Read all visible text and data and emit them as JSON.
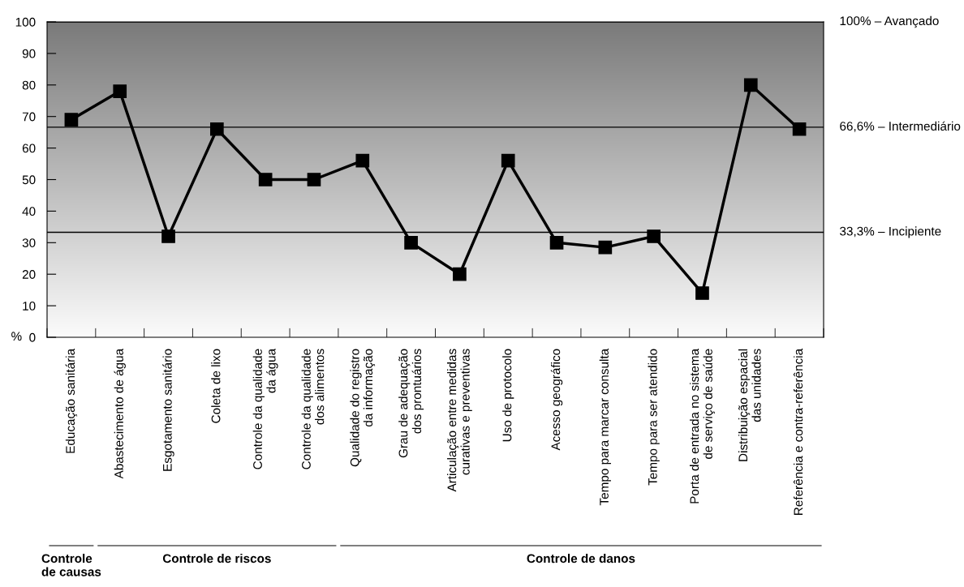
{
  "chart_data": {
    "type": "line",
    "categories": [
      "Educação sanitária",
      "Abastecimento de água",
      "Esgotamento sanitário",
      "Coleta de lixo",
      "Controle da qualidade\nda água",
      "Controle da qualidade\ndos alimentos",
      "Qualidade do registro\nda informação",
      "Grau de adequação\ndos prontuários",
      "Articulação entre medidas\ncurativas e preventivas",
      "Uso de protocolo",
      "Acesso geográfico",
      "Tempo para marcar consulta",
      "Tempo para ser atendido",
      "Porta de entrada no sistema\nde serviço de saúde",
      "Distribuição espacial\ndas unidades",
      "Referência e contra-referência"
    ],
    "series": [
      {
        "color": "#000000",
        "values": [
          69,
          78,
          32,
          66,
          50,
          50,
          56,
          30,
          20,
          56,
          30,
          28.5,
          32,
          14,
          80,
          66
        ]
      }
    ],
    "ylabel": "%",
    "ylim": [
      0,
      100
    ],
    "yticks": [
      0,
      10,
      20,
      30,
      40,
      50,
      60,
      70,
      80,
      90,
      100
    ],
    "marker": "square",
    "line_style": "solid",
    "grid": false,
    "legend": false,
    "ref_lines": [
      {
        "axis": "y",
        "value": 100,
        "label": "100% – Avançado",
        "color": "#000000"
      },
      {
        "axis": "y",
        "value": 66.6,
        "label": "66,6% – Intermediário",
        "color": "#000000"
      },
      {
        "axis": "y",
        "value": 33.3,
        "label": "33,3% – Incipiente",
        "color": "#000000"
      }
    ],
    "annotations": [
      "Controle\nde causas",
      "Controle de riscos",
      "Controle de danos"
    ]
  }
}
